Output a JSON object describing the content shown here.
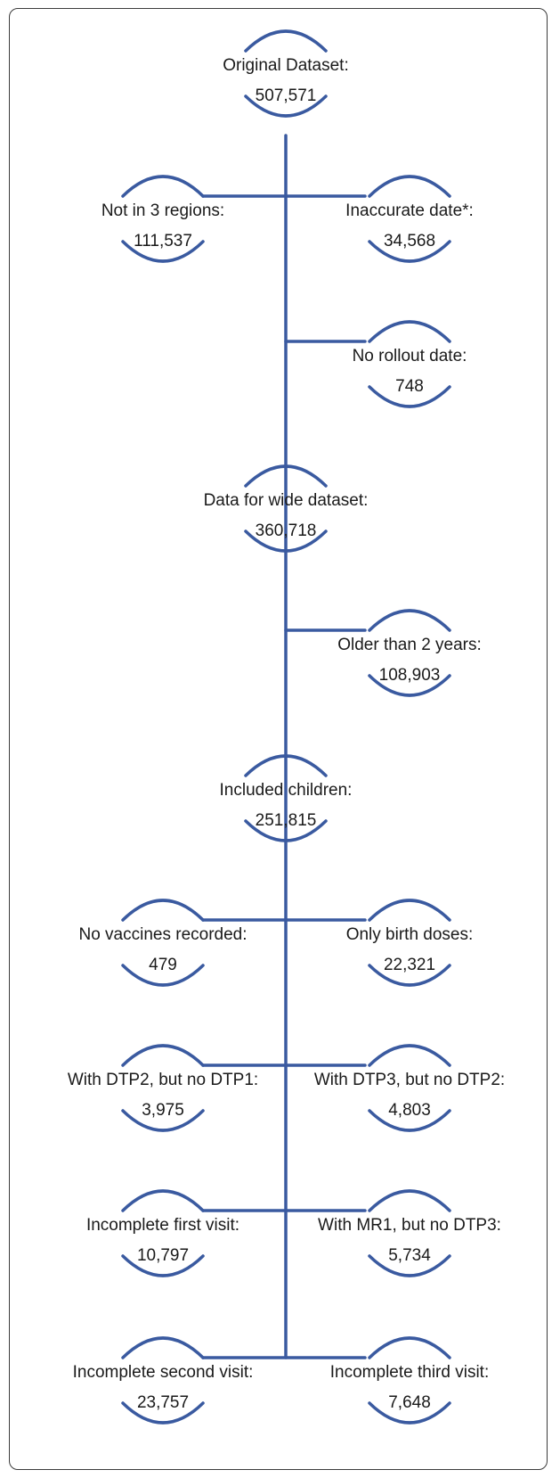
{
  "diagram": {
    "accent_color": "#3a5aa0",
    "nodes": [
      {
        "id": "original",
        "label": "Original Dataset:",
        "value": "507,571"
      },
      {
        "id": "not-in-3-regions",
        "label": "Not in 3 regions:",
        "value": "111,537"
      },
      {
        "id": "inaccurate-date",
        "label": "Inaccurate date*:",
        "value": "34,568"
      },
      {
        "id": "no-rollout-date",
        "label": "No rollout date:",
        "value": "748"
      },
      {
        "id": "wide-dataset",
        "label": "Data for wide dataset:",
        "value": "360,718"
      },
      {
        "id": "older-than-2",
        "label": "Older than 2 years:",
        "value": "108,903"
      },
      {
        "id": "included-children",
        "label": "Included children:",
        "value": "251,815"
      },
      {
        "id": "no-vaccines",
        "label": "No vaccines recorded:",
        "value": "479"
      },
      {
        "id": "only-birth-doses",
        "label": "Only birth doses:",
        "value": "22,321"
      },
      {
        "id": "dtp2-no-dtp1",
        "label": "With DTP2, but no DTP1:",
        "value": "3,975"
      },
      {
        "id": "dtp3-no-dtp2",
        "label": "With DTP3, but no DTP2:",
        "value": "4,803"
      },
      {
        "id": "incomplete-first",
        "label": "Incomplete first visit:",
        "value": "10,797"
      },
      {
        "id": "mr1-no-dtp3",
        "label": "With MR1, but no DTP3:",
        "value": "5,734"
      },
      {
        "id": "incomplete-second",
        "label": "Incomplete second visit:",
        "value": "23,757"
      },
      {
        "id": "incomplete-third",
        "label": "Incomplete third visit:",
        "value": "7,648"
      }
    ],
    "edges": [
      {
        "from": "original",
        "to": "not-in-3-regions"
      },
      {
        "from": "original",
        "to": "inaccurate-date"
      },
      {
        "from": "original",
        "to": "no-rollout-date"
      },
      {
        "from": "original",
        "to": "wide-dataset"
      },
      {
        "from": "wide-dataset",
        "to": "older-than-2"
      },
      {
        "from": "wide-dataset",
        "to": "included-children"
      },
      {
        "from": "included-children",
        "to": "no-vaccines"
      },
      {
        "from": "included-children",
        "to": "only-birth-doses"
      },
      {
        "from": "included-children",
        "to": "dtp2-no-dtp1"
      },
      {
        "from": "included-children",
        "to": "dtp3-no-dtp2"
      },
      {
        "from": "included-children",
        "to": "incomplete-first"
      },
      {
        "from": "included-children",
        "to": "mr1-no-dtp3"
      },
      {
        "from": "included-children",
        "to": "incomplete-second"
      },
      {
        "from": "included-children",
        "to": "incomplete-third"
      }
    ]
  }
}
